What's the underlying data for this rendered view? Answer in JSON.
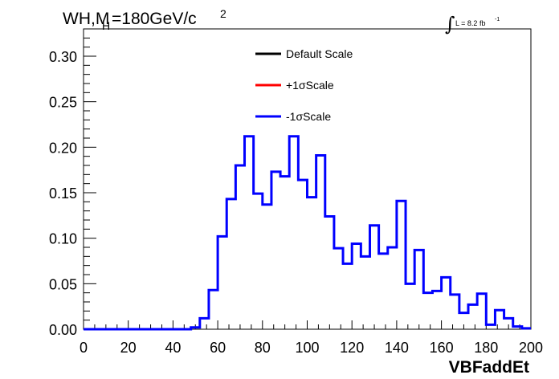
{
  "chart_data": {
    "type": "line",
    "title": {
      "prefix": "WH,M",
      "subscript": "H",
      "value": "=180GeV/c",
      "superscript": "2"
    },
    "luminosity": {
      "symbol": "∫",
      "text": "L = 8.2 fb",
      "superscript": "-1"
    },
    "xlabel": "VBFaddEt",
    "ylabel": "",
    "xlim": [
      0,
      200
    ],
    "ylim": [
      0,
      0.33
    ],
    "x_ticks": [
      "0",
      "20",
      "40",
      "60",
      "80",
      "100",
      "120",
      "140",
      "160",
      "180",
      "200"
    ],
    "y_ticks": [
      "0.00",
      "0.05",
      "0.10",
      "0.15",
      "0.20",
      "0.25",
      "0.30"
    ],
    "bin_width": 4,
    "bin_edges_start": 0,
    "legend": [
      {
        "label": "Default Scale",
        "color": "#000000"
      },
      {
        "label": "+1σScale",
        "color": "#ff0000"
      },
      {
        "label": "-1σScale",
        "color": "#0000ff"
      }
    ],
    "series": [
      {
        "name": "-1σScale",
        "color": "#0000ff",
        "values": [
          0,
          0,
          0,
          0,
          0,
          0,
          0,
          0,
          0,
          0,
          0,
          0,
          0.002,
          0.012,
          0.043,
          0.102,
          0.143,
          0.18,
          0.212,
          0.149,
          0.137,
          0.173,
          0.168,
          0.212,
          0.164,
          0.145,
          0.191,
          0.124,
          0.089,
          0.072,
          0.094,
          0.08,
          0.114,
          0.083,
          0.09,
          0.141,
          0.05,
          0.087,
          0.04,
          0.042,
          0.057,
          0.038,
          0.018,
          0.027,
          0.039,
          0.005,
          0.021,
          0.012,
          0.003,
          0.001
        ]
      }
    ]
  }
}
